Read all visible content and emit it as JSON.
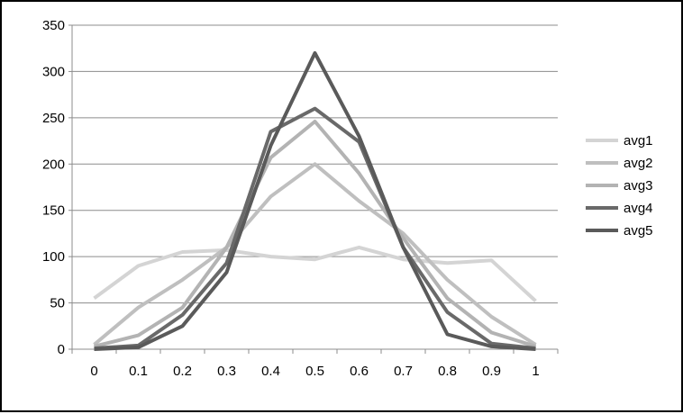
{
  "chart_data": {
    "type": "line",
    "title": "",
    "xlabel": "",
    "ylabel": "",
    "categories": [
      "0",
      "0.1",
      "0.2",
      "0.3",
      "0.4",
      "0.5",
      "0.6",
      "0.7",
      "0.8",
      "0.9",
      "1"
    ],
    "ylim": [
      0,
      350
    ],
    "yticks": [
      0,
      50,
      100,
      150,
      200,
      250,
      300,
      350
    ],
    "grid": "horizontal",
    "legend_position": "right",
    "series": [
      {
        "name": "avg1",
        "color": "#d4d4d4",
        "values": [
          55,
          90,
          105,
          107,
          100,
          97,
          110,
          97,
          93,
          96,
          52
        ]
      },
      {
        "name": "avg2",
        "color": "#bfbfbf",
        "values": [
          5,
          45,
          75,
          110,
          165,
          200,
          160,
          125,
          75,
          35,
          5
        ]
      },
      {
        "name": "avg3",
        "color": "#b3b3b3",
        "values": [
          3,
          15,
          45,
          110,
          207,
          246,
          190,
          120,
          55,
          18,
          3
        ]
      },
      {
        "name": "avg4",
        "color": "#696969",
        "values": [
          1,
          4,
          37,
          93,
          235,
          260,
          224,
          110,
          40,
          6,
          1
        ]
      },
      {
        "name": "avg5",
        "color": "#5a5a5a",
        "values": [
          0,
          2,
          25,
          83,
          220,
          320,
          230,
          110,
          16,
          3,
          0
        ]
      }
    ]
  }
}
